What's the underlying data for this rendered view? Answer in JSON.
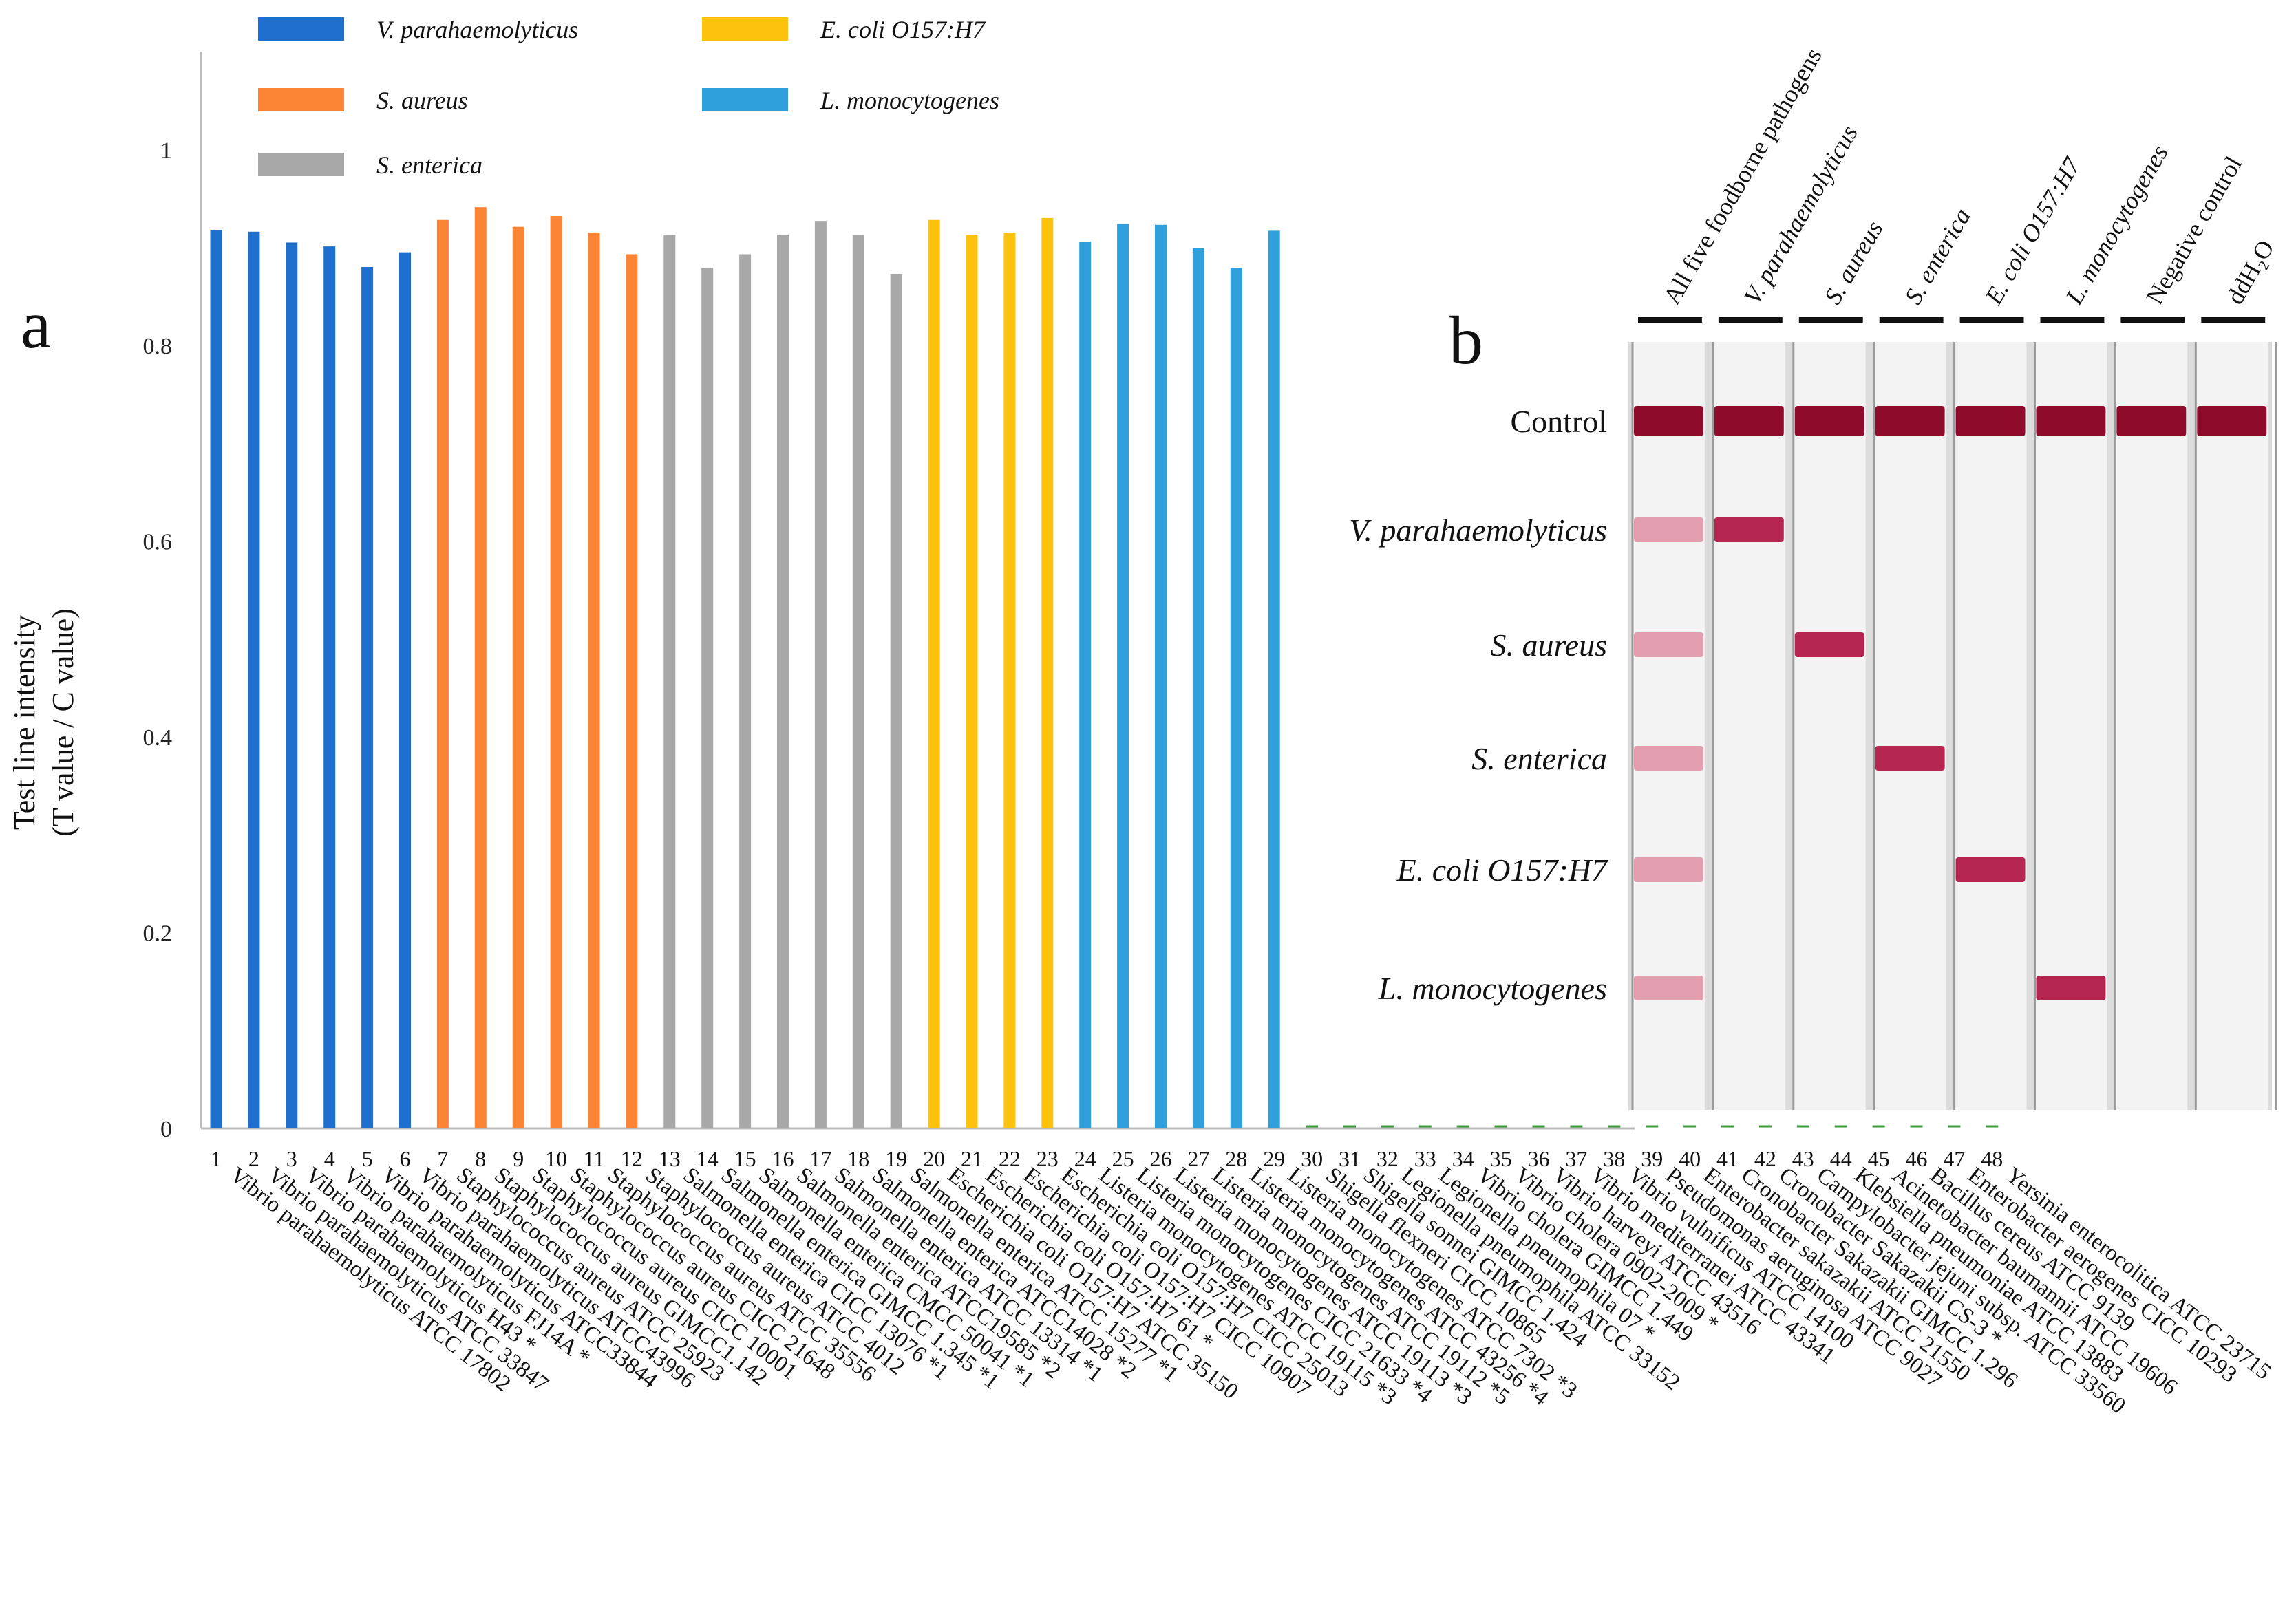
{
  "panel_a": {
    "letter": "a"
  },
  "panel_b": {
    "letter": "b"
  },
  "chart_data": {
    "type": "bar",
    "title": "",
    "xlabel": "",
    "ylabel_line1": "Test line intensity",
    "ylabel_line2": "(T value / C value)",
    "ylim": [
      0,
      1.1
    ],
    "yticks": [
      0,
      0.2,
      0.4,
      0.6,
      0.8,
      1
    ],
    "ytick_labels": [
      "0",
      "0.2",
      "0.4",
      "0.6",
      "0.8",
      "1"
    ],
    "legend": [
      {
        "label": "V. parahaemolyticus",
        "color": "#1f6fce"
      },
      {
        "label": "S. aureus",
        "color": "#fb8535"
      },
      {
        "label": "S. enterica",
        "color": "#a8a8a8"
      },
      {
        "label": "E. coli O157:H7",
        "color": "#fcc20e"
      },
      {
        "label": "L. monocytogenes",
        "color": "#2fa0dc"
      }
    ],
    "negative_color": "#3a9a3a",
    "categories": [
      "1",
      "2",
      "3",
      "4",
      "5",
      "6",
      "7",
      "8",
      "9",
      "10",
      "11",
      "12",
      "13",
      "14",
      "15",
      "16",
      "17",
      "18",
      "19",
      "20",
      "21",
      "22",
      "23",
      "24",
      "25",
      "26",
      "27",
      "28",
      "29",
      "30",
      "31",
      "32",
      "33",
      "34",
      "35",
      "36",
      "37",
      "38",
      "39",
      "40",
      "41",
      "42",
      "43",
      "44",
      "45",
      "46",
      "47",
      "48"
    ],
    "values": [
      0.918,
      0.916,
      0.905,
      0.901,
      0.88,
      0.895,
      0.928,
      0.941,
      0.921,
      0.932,
      0.915,
      0.893,
      0.913,
      0.879,
      0.893,
      0.913,
      0.927,
      0.913,
      0.873,
      0.928,
      0.913,
      0.915,
      0.93,
      0.906,
      0.924,
      0.923,
      0.899,
      0.879,
      0.917,
      0,
      0,
      0,
      0,
      0,
      0,
      0,
      0,
      0,
      0,
      0,
      0,
      0,
      0,
      0,
      0,
      0,
      0,
      0
    ],
    "groups": [
      "vp",
      "vp",
      "vp",
      "vp",
      "vp",
      "vp",
      "sa",
      "sa",
      "sa",
      "sa",
      "sa",
      "sa",
      "se",
      "se",
      "se",
      "se",
      "se",
      "se",
      "se",
      "ec",
      "ec",
      "ec",
      "ec",
      "lm",
      "lm",
      "lm",
      "lm",
      "lm",
      "lm",
      "neg",
      "neg",
      "neg",
      "neg",
      "neg",
      "neg",
      "neg",
      "neg",
      "neg",
      "neg",
      "neg",
      "neg",
      "neg",
      "neg",
      "neg",
      "neg",
      "neg",
      "neg",
      "neg"
    ],
    "strains": [
      "Vibrio parahaemolyticus ATCC 17802",
      "Vibrio parahaemolyticus ATCC 33847",
      "Vibrio parahaemolyticus H43 *",
      "Vibrio parahaemolyticus FJ14A *",
      "Vibrio parahaemolyticus ATCC33844",
      "Vibrio parahaemolyticus ATCC43996",
      "Staphylococcus aureus ATCC 25923",
      "Staphylococcus aureus GIMCC1.142",
      "Staphylococcus aureus CICC 10001",
      "Staphylococcus aureus CICC 21648",
      "Staphylococcus aureus ATCC 35556",
      "Staphylococcus aureus ATCC 4012",
      "Salmonella enterica CICC 13076 *1",
      "Salmonella enterica GIMCC 1.345 *1",
      "Salmonella enterica CMCC 50041 *1",
      "Salmonella enterica ATCC19585 *2",
      "Salmonella enterica ATCC 13314 *1",
      "Salmonella enterica ATCC14028 *2",
      "Salmonella enterica ATCC 15277 *1",
      "Escherichia coli O157:H7 ATCC 35150",
      "Escherichia coli O157:H7 61 *",
      "Escherichia coli O157:H7 CICC 10907",
      "Escherichia coli O157:H7 CICC 25013",
      "Listeria monocytogenes ATCC 19115 *3",
      "Listeria monocytogenes CICC 21633 *4",
      "Listeria monocytogenes ATCC 19113 *3",
      "Listeria monocytogenes ATCC 19112 *5",
      "Listeria monocytogenes ATCC 43256 *4",
      "Listeria monocytogenes ATCC 7302 *3",
      "Shigella flexneri CICC 10865",
      "Shigella sonnei GIMCC 1.424",
      "Legionella pneumophila ATCC 33152",
      "Legionella pneumophila 07 *",
      "Vibrio cholera GIMCC 1.449",
      "Vibrio cholera 0902-2009 *",
      "Vibrio harveyi ATCC 43516",
      "Vibrio mediterranei ATCC 43341",
      "Vibrio vulnificus ATCC 14100",
      "Pseudomonas aeruginosa ATCC 9027",
      "Enterobacter sakazakii ATCC 21550",
      "Cronobacter Sakazakii GIMCC 1.296",
      "Cronobacter Sakazakii CS-3 *",
      "Campylobacter jejuni subsp. ATCC 33560",
      "Klebsiella pneumoniae ATCC 13883",
      "Acinetobacter baumannii ATCC 19606",
      "Bacillus cereus ATCC 9139",
      "Enterobacter aerogenes CICC 10293",
      "Yersinia enterocolitica ATCC 23715"
    ]
  },
  "strip_panel": {
    "headers": [
      "All five foodborne pathogens",
      "V. parahaemolyticus",
      "S. aureus",
      "S. enterica",
      "E. coli O157:H7",
      "L. monocytogenes",
      "Negative control",
      "ddH₂O"
    ],
    "header_italic": [
      false,
      true,
      true,
      true,
      true,
      true,
      false,
      false
    ],
    "row_labels": [
      "Control",
      "V. parahaemolyticus",
      "S. aureus",
      "S. enterica",
      "E. coli O157:H7",
      "L. monocytogenes"
    ],
    "row_italic": [
      false,
      true,
      true,
      true,
      true,
      true
    ],
    "bands": [
      [
        1,
        0.55,
        0.55,
        0.55,
        0.55,
        0.55
      ],
      [
        1,
        0.9,
        0,
        0,
        0,
        0
      ],
      [
        1,
        0,
        0.9,
        0,
        0,
        0
      ],
      [
        1,
        0,
        0,
        0.9,
        0,
        0
      ],
      [
        1,
        0,
        0,
        0,
        0.9,
        0
      ],
      [
        1,
        0,
        0,
        0,
        0,
        0.9
      ],
      [
        1,
        0,
        0,
        0,
        0,
        0
      ],
      [
        1,
        0,
        0,
        0,
        0,
        0
      ]
    ]
  }
}
